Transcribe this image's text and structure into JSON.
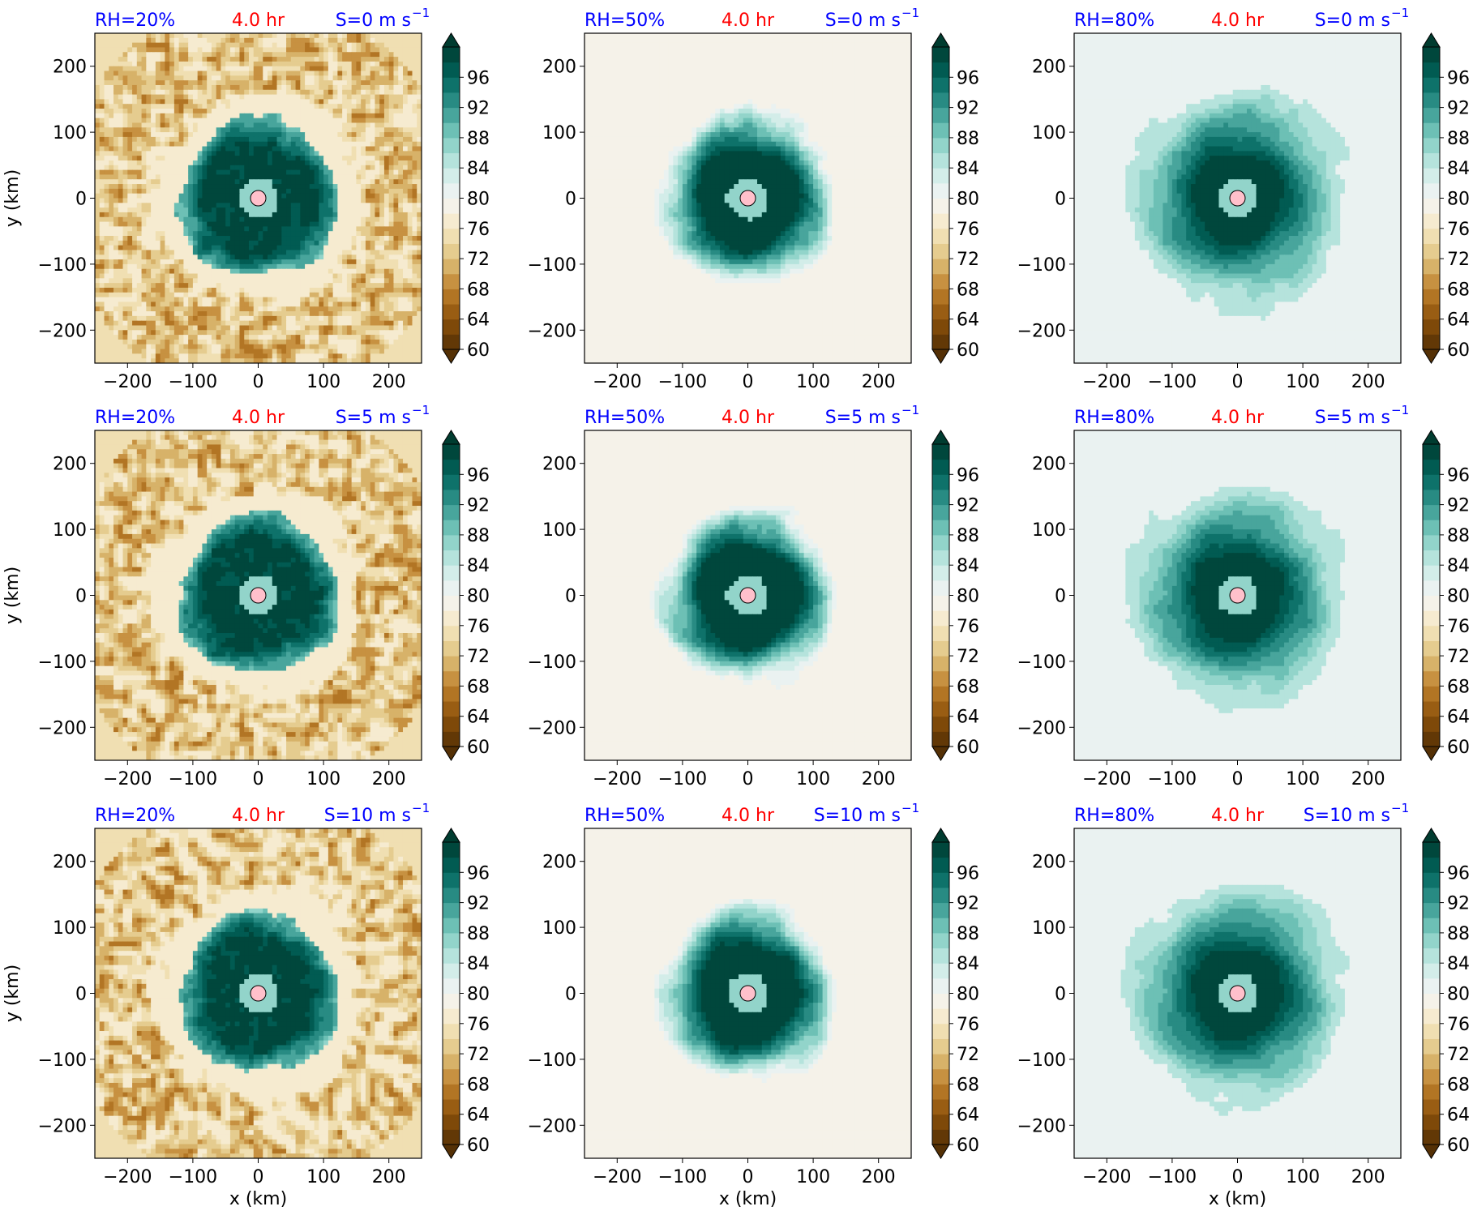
{
  "figure": {
    "xlabel": "x (km)",
    "ylabel": "y (km)",
    "time_label": "4.0 hr",
    "colors": {
      "rh_label": "#0000ff",
      "time_label": "#ff0000",
      "shear_label": "#0000ff",
      "center_marker": "#ffc0cb"
    }
  },
  "chart_data": {
    "type": "heatmap",
    "grid": {
      "rows": 3,
      "cols": 3
    },
    "xlim": [
      -250,
      250
    ],
    "ylim": [
      -250,
      250
    ],
    "xticks": [
      -200,
      -100,
      0,
      100,
      200
    ],
    "yticks": [
      -200,
      -100,
      0,
      100,
      200
    ],
    "colorbar": {
      "min": 60,
      "max": 100,
      "step": 2,
      "ticks": [
        60,
        64,
        68,
        72,
        76,
        80,
        84,
        88,
        92,
        96
      ],
      "extend": "both",
      "colormap": "BrBG"
    },
    "panels": [
      {
        "row": 0,
        "col": 0,
        "rh_label": "RH=20%",
        "shear_label": "S=0 m s",
        "shear_exp": "−1",
        "rh_env": 20
      },
      {
        "row": 0,
        "col": 1,
        "rh_label": "RH=50%",
        "shear_label": "S=0 m s",
        "shear_exp": "−1",
        "rh_env": 50
      },
      {
        "row": 0,
        "col": 2,
        "rh_label": "RH=80%",
        "shear_label": "S=0 m s",
        "shear_exp": "−1",
        "rh_env": 80
      },
      {
        "row": 1,
        "col": 0,
        "rh_label": "RH=20%",
        "shear_label": "S=5 m s",
        "shear_exp": "−1",
        "rh_env": 20
      },
      {
        "row": 1,
        "col": 1,
        "rh_label": "RH=50%",
        "shear_label": "S=5 m s",
        "shear_exp": "−1",
        "rh_env": 50
      },
      {
        "row": 1,
        "col": 2,
        "rh_label": "RH=80%",
        "shear_label": "S=5 m s",
        "shear_exp": "−1",
        "rh_env": 80
      },
      {
        "row": 2,
        "col": 0,
        "rh_label": "RH=20%",
        "shear_label": "S=10 m s",
        "shear_exp": "−1",
        "rh_env": 20
      },
      {
        "row": 2,
        "col": 1,
        "rh_label": "RH=50%",
        "shear_label": "S=10 m s",
        "shear_exp": "−1",
        "rh_env": 50
      },
      {
        "row": 2,
        "col": 2,
        "rh_label": "RH=80%",
        "shear_label": "S=10 m s",
        "shear_exp": "−1",
        "rh_env": 80
      }
    ]
  }
}
